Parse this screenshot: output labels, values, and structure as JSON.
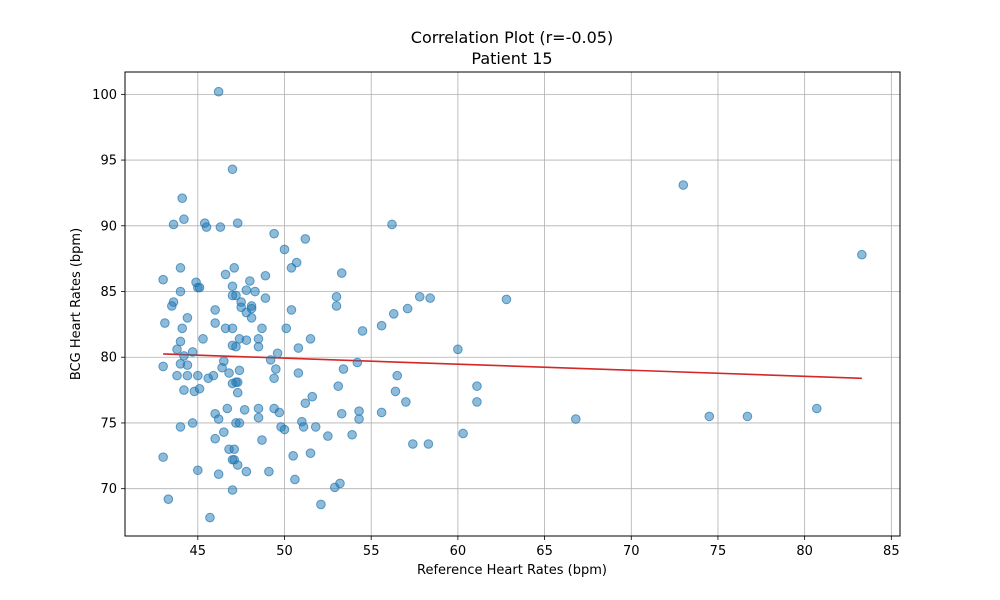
{
  "chart_data": {
    "type": "scatter",
    "title": "Correlation Plot (r=-0.05)",
    "subtitle": "Patient 15",
    "xlabel": "Reference Heart Rates (bpm)",
    "ylabel": "BCG Heart Rates (bpm)",
    "xlim": [
      40.8,
      85.5
    ],
    "ylim": [
      66.4,
      101.7
    ],
    "xticks": [
      45,
      50,
      55,
      60,
      65,
      70,
      75,
      80,
      85
    ],
    "yticks": [
      70,
      75,
      80,
      85,
      90,
      95,
      100
    ],
    "grid": true,
    "point_color": "#1f77b4",
    "line_color": "#d62728",
    "fit_line": {
      "x": [
        43.0,
        83.3
      ],
      "y": [
        80.25,
        78.4
      ]
    },
    "points": [
      [
        43.0,
        85.9
      ],
      [
        43.1,
        82.6
      ],
      [
        43.0,
        79.3
      ],
      [
        43.0,
        72.4
      ],
      [
        43.3,
        69.2
      ],
      [
        43.6,
        90.1
      ],
      [
        43.5,
        83.9
      ],
      [
        43.6,
        84.2
      ],
      [
        43.8,
        80.6
      ],
      [
        43.8,
        78.6
      ],
      [
        44.0,
        86.8
      ],
      [
        44.0,
        85.0
      ],
      [
        44.0,
        81.2
      ],
      [
        44.0,
        79.5
      ],
      [
        44.0,
        74.7
      ],
      [
        44.1,
        92.1
      ],
      [
        44.2,
        90.5
      ],
      [
        44.1,
        82.2
      ],
      [
        44.2,
        80.1
      ],
      [
        44.2,
        77.5
      ],
      [
        44.4,
        83.0
      ],
      [
        44.4,
        79.4
      ],
      [
        44.4,
        78.6
      ],
      [
        44.7,
        80.4
      ],
      [
        44.8,
        77.4
      ],
      [
        44.7,
        75.0
      ],
      [
        44.9,
        85.7
      ],
      [
        45.0,
        85.3
      ],
      [
        45.1,
        85.3
      ],
      [
        45.0,
        78.6
      ],
      [
        45.1,
        77.6
      ],
      [
        45.0,
        71.4
      ],
      [
        45.3,
        81.4
      ],
      [
        45.4,
        90.2
      ],
      [
        45.5,
        89.9
      ],
      [
        45.6,
        78.4
      ],
      [
        45.9,
        78.6
      ],
      [
        45.7,
        67.8
      ],
      [
        46.0,
        83.6
      ],
      [
        46.0,
        82.6
      ],
      [
        46.0,
        75.7
      ],
      [
        46.0,
        73.8
      ],
      [
        46.2,
        100.2
      ],
      [
        46.3,
        89.9
      ],
      [
        46.2,
        75.3
      ],
      [
        46.2,
        71.1
      ],
      [
        46.5,
        79.7
      ],
      [
        46.4,
        79.2
      ],
      [
        46.5,
        74.3
      ],
      [
        46.6,
        86.3
      ],
      [
        46.6,
        82.2
      ],
      [
        46.7,
        76.1
      ],
      [
        46.8,
        78.8
      ],
      [
        46.8,
        73.0
      ],
      [
        47.0,
        94.3
      ],
      [
        47.0,
        85.4
      ],
      [
        47.0,
        84.7
      ],
      [
        47.0,
        82.2
      ],
      [
        47.0,
        80.9
      ],
      [
        47.0,
        78.0
      ],
      [
        47.0,
        72.2
      ],
      [
        47.0,
        69.9
      ],
      [
        47.1,
        86.8
      ],
      [
        47.1,
        73.0
      ],
      [
        47.1,
        72.2
      ],
      [
        47.2,
        84.7
      ],
      [
        47.2,
        80.8
      ],
      [
        47.2,
        78.1
      ],
      [
        47.2,
        75.0
      ],
      [
        47.3,
        90.2
      ],
      [
        47.3,
        78.1
      ],
      [
        47.3,
        77.3
      ],
      [
        47.3,
        71.8
      ],
      [
        47.4,
        81.4
      ],
      [
        47.4,
        79.0
      ],
      [
        47.4,
        75.0
      ],
      [
        47.5,
        84.2
      ],
      [
        47.5,
        83.8
      ],
      [
        47.7,
        76.0
      ],
      [
        47.8,
        85.1
      ],
      [
        47.8,
        83.4
      ],
      [
        47.8,
        81.3
      ],
      [
        47.8,
        71.3
      ],
      [
        48.0,
        85.8
      ],
      [
        48.1,
        83.9
      ],
      [
        48.1,
        83.0
      ],
      [
        48.1,
        83.7
      ],
      [
        48.3,
        85.0
      ],
      [
        48.5,
        80.8
      ],
      [
        48.5,
        81.4
      ],
      [
        48.5,
        76.1
      ],
      [
        48.5,
        75.4
      ],
      [
        48.7,
        82.2
      ],
      [
        48.7,
        73.7
      ],
      [
        48.9,
        86.2
      ],
      [
        48.9,
        84.5
      ],
      [
        49.1,
        71.3
      ],
      [
        49.2,
        79.8
      ],
      [
        49.4,
        89.4
      ],
      [
        49.4,
        78.4
      ],
      [
        49.4,
        76.1
      ],
      [
        49.5,
        79.1
      ],
      [
        49.6,
        80.3
      ],
      [
        49.7,
        75.8
      ],
      [
        49.8,
        74.7
      ],
      [
        50.0,
        88.2
      ],
      [
        50.0,
        74.5
      ],
      [
        50.1,
        82.2
      ],
      [
        50.4,
        86.8
      ],
      [
        50.4,
        83.6
      ],
      [
        50.5,
        72.5
      ],
      [
        50.6,
        70.7
      ],
      [
        50.7,
        87.2
      ],
      [
        50.8,
        80.7
      ],
      [
        50.8,
        78.8
      ],
      [
        51.0,
        75.1
      ],
      [
        51.1,
        74.7
      ],
      [
        51.2,
        89.0
      ],
      [
        51.2,
        76.5
      ],
      [
        51.5,
        81.4
      ],
      [
        51.5,
        72.7
      ],
      [
        51.6,
        77.0
      ],
      [
        51.8,
        74.7
      ],
      [
        52.1,
        68.8
      ],
      [
        52.5,
        74.0
      ],
      [
        52.9,
        70.1
      ],
      [
        53.0,
        84.6
      ],
      [
        53.0,
        83.9
      ],
      [
        53.1,
        77.8
      ],
      [
        53.2,
        70.4
      ],
      [
        53.3,
        86.4
      ],
      [
        53.3,
        75.7
      ],
      [
        53.4,
        79.1
      ],
      [
        53.9,
        74.1
      ],
      [
        54.2,
        79.6
      ],
      [
        54.3,
        75.9
      ],
      [
        54.3,
        75.3
      ],
      [
        54.5,
        82.0
      ],
      [
        55.6,
        82.4
      ],
      [
        55.6,
        75.8
      ],
      [
        56.2,
        90.1
      ],
      [
        56.3,
        83.3
      ],
      [
        56.4,
        77.4
      ],
      [
        56.5,
        78.6
      ],
      [
        57.0,
        76.6
      ],
      [
        57.1,
        83.7
      ],
      [
        57.4,
        73.4
      ],
      [
        57.8,
        84.6
      ],
      [
        58.3,
        73.4
      ],
      [
        58.4,
        84.5
      ],
      [
        60.0,
        80.6
      ],
      [
        60.3,
        74.2
      ],
      [
        61.1,
        77.8
      ],
      [
        61.1,
        76.6
      ],
      [
        62.8,
        84.4
      ],
      [
        66.8,
        75.3
      ],
      [
        73.0,
        93.1
      ],
      [
        74.5,
        75.5
      ],
      [
        76.7,
        75.5
      ],
      [
        80.7,
        76.1
      ],
      [
        83.3,
        87.8
      ]
    ]
  }
}
